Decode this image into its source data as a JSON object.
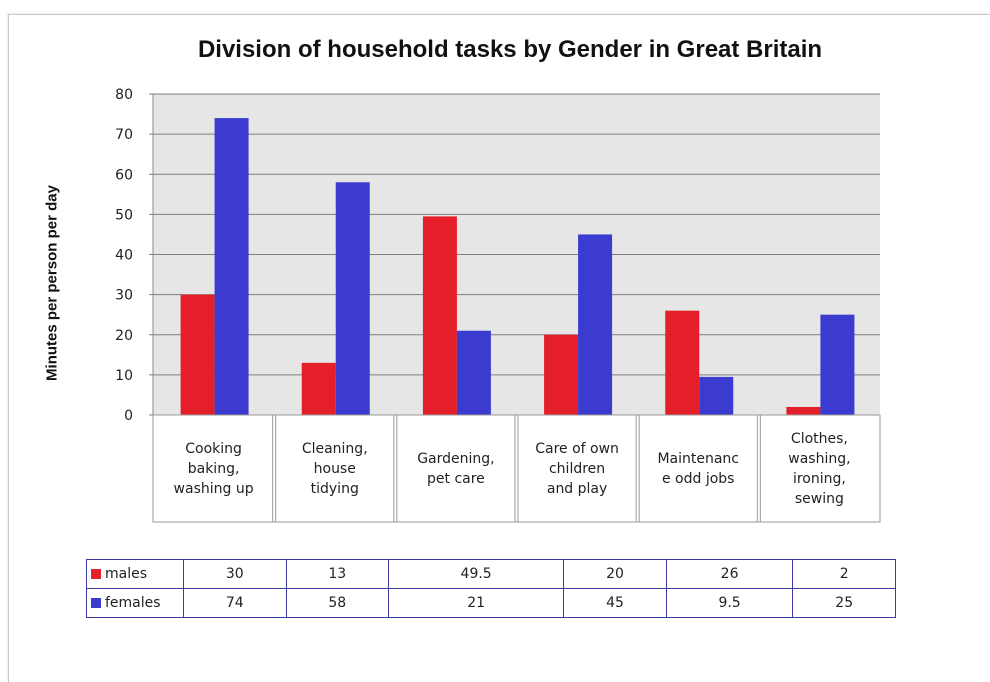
{
  "chart_data": {
    "type": "bar",
    "title": "Division of household tasks by Gender in Great Britain",
    "xlabel": "",
    "ylabel": "Minutes per person per day",
    "ylim": [
      0,
      80
    ],
    "yticks": [
      "0",
      "10",
      "20",
      "30",
      "40",
      "50",
      "60",
      "70",
      "80"
    ],
    "grid": true,
    "categories": [
      "Cooking baking, washing up",
      "Cleaning, house tidying",
      "Gardening, pet care",
      "Care of own children and play",
      "Maintenanc e odd jobs",
      "Clothes, washing, ironing, sewing"
    ],
    "category_lines": [
      [
        "Cooking",
        "baking,",
        "washing up"
      ],
      [
        "Cleaning,",
        "house",
        "tidying"
      ],
      [
        "Gardening,",
        "pet care"
      ],
      [
        "Care of own",
        "children",
        "and play"
      ],
      [
        "Maintenanc",
        "e odd jobs"
      ],
      [
        "Clothes,",
        "washing,",
        "ironing,",
        "sewing"
      ]
    ],
    "series": [
      {
        "name": "males",
        "color": "#e41f2a",
        "values": [
          30,
          13,
          49.5,
          20,
          26,
          2
        ],
        "table_values": [
          "30",
          "13",
          "49.5",
          "20",
          "26",
          "2"
        ]
      },
      {
        "name": "females",
        "color": "#3b3bd0",
        "values": [
          74,
          58,
          21,
          45,
          9.5,
          25
        ],
        "table_values": [
          "74",
          "58",
          "21",
          "45",
          "9.5",
          "25"
        ]
      }
    ],
    "legend": "data-table"
  }
}
